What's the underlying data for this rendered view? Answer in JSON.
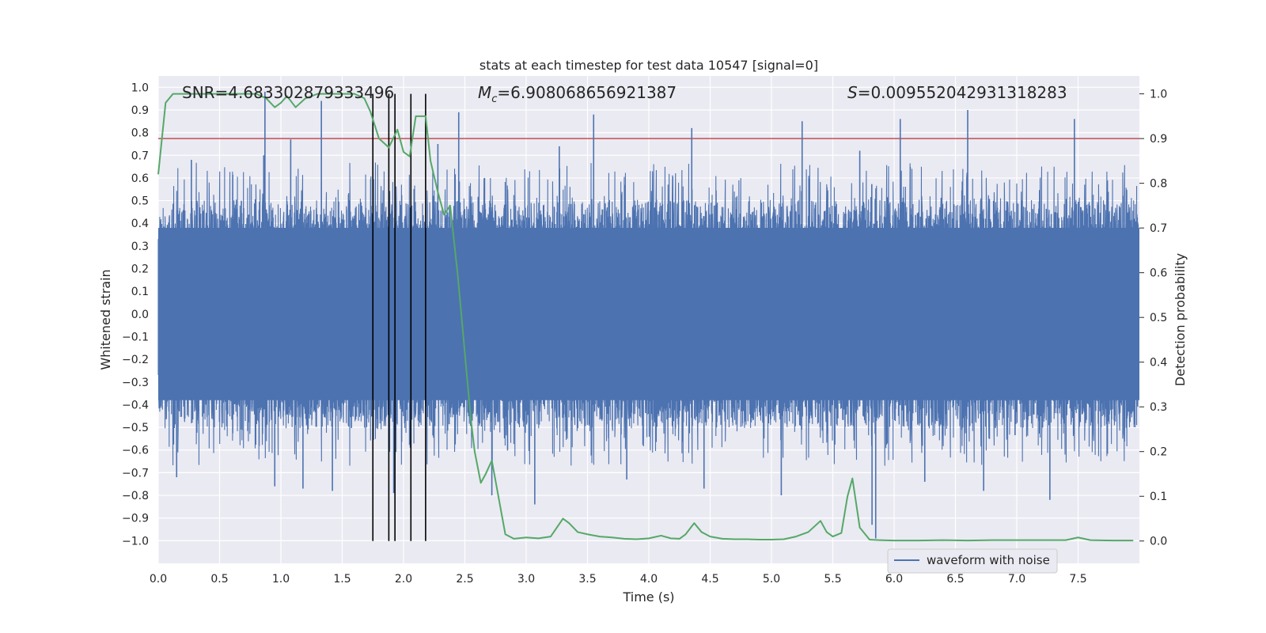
{
  "chart_data": {
    "type": "line",
    "title": "stats at each timestep for test data 10547 [signal=0]",
    "xlabel": "Time (s)",
    "ylabel": "Whitened strain",
    "y2label": "Detection probability",
    "xlim": [
      0.0,
      8.0
    ],
    "ylim": [
      -1.1,
      1.05
    ],
    "y2lim": [
      -0.05,
      1.04
    ],
    "xticks": [
      0.0,
      0.5,
      1.0,
      1.5,
      2.0,
      2.5,
      3.0,
      3.5,
      4.0,
      4.5,
      5.0,
      5.5,
      6.0,
      6.5,
      7.0,
      7.5
    ],
    "xtick_labels": [
      "0.0",
      "0.5",
      "1.0",
      "1.5",
      "2.0",
      "2.5",
      "3.0",
      "3.5",
      "4.0",
      "4.5",
      "5.0",
      "5.5",
      "6.0",
      "6.5",
      "7.0",
      "7.5"
    ],
    "yticks": [
      -1.0,
      -0.9,
      -0.8,
      -0.7,
      -0.6,
      -0.5,
      -0.4,
      -0.3,
      -0.2,
      -0.1,
      0.0,
      0.1,
      0.2,
      0.3,
      0.4,
      0.5,
      0.6,
      0.7,
      0.8,
      0.9,
      1.0
    ],
    "ytick_labels": [
      "−1.0",
      "−0.9",
      "−0.8",
      "−0.7",
      "−0.6",
      "−0.5",
      "−0.4",
      "−0.3",
      "−0.2",
      "−0.1",
      "0.0",
      "0.1",
      "0.2",
      "0.3",
      "0.4",
      "0.5",
      "0.6",
      "0.7",
      "0.8",
      "0.9",
      "1.0"
    ],
    "y2ticks": [
      0.0,
      0.1,
      0.2,
      0.3,
      0.4,
      0.5,
      0.6,
      0.7,
      0.8,
      0.9,
      1.0
    ],
    "y2tick_labels": [
      "0.0",
      "0.1",
      "0.2",
      "0.3",
      "0.4",
      "0.5",
      "0.6",
      "0.7",
      "0.8",
      "0.9",
      "1.0"
    ],
    "annotations": {
      "snr": "SNR=4.683302879333496",
      "mc_symbol": "M",
      "mc_sub": "c",
      "mc_value": "=6.908068656921387",
      "s_symbol": "S",
      "s_value": "=0.009552042931318283"
    },
    "legend": {
      "label": "waveform with noise",
      "placement": "lower-right"
    },
    "threshold": {
      "value": 0.9,
      "axis": "y2",
      "color": "#c44e52"
    },
    "vlines": [
      1.75,
      1.88,
      1.93,
      2.06,
      2.18
    ],
    "waveform": {
      "name": "waveform with noise",
      "color": "#4c72b0",
      "envelope": 0.42,
      "spikes": [
        {
          "x": 0.87,
          "y": 0.98
        },
        {
          "x": 0.86,
          "y": 0.7
        },
        {
          "x": 1.33,
          "y": 0.94
        },
        {
          "x": 1.08,
          "y": 0.77
        },
        {
          "x": 0.27,
          "y": 0.68
        },
        {
          "x": 2.45,
          "y": 0.89
        },
        {
          "x": 3.55,
          "y": 0.88
        },
        {
          "x": 4.35,
          "y": 0.82
        },
        {
          "x": 5.25,
          "y": 0.85
        },
        {
          "x": 6.05,
          "y": 0.86
        },
        {
          "x": 6.6,
          "y": 0.9
        },
        {
          "x": 7.47,
          "y": 0.86
        },
        {
          "x": 2.28,
          "y": 0.75
        },
        {
          "x": 3.27,
          "y": 0.74
        },
        {
          "x": 5.72,
          "y": 0.72
        },
        {
          "x": 0.15,
          "y": -0.72
        },
        {
          "x": 1.42,
          "y": -0.78
        },
        {
          "x": 1.18,
          "y": -0.77
        },
        {
          "x": 3.07,
          "y": -0.84
        },
        {
          "x": 5.85,
          "y": -0.99
        },
        {
          "x": 5.82,
          "y": -0.93
        },
        {
          "x": 7.27,
          "y": -0.82
        },
        {
          "x": 6.73,
          "y": -0.78
        },
        {
          "x": 5.08,
          "y": -0.8
        },
        {
          "x": 4.45,
          "y": -0.77
        },
        {
          "x": 2.72,
          "y": -0.8
        },
        {
          "x": 1.92,
          "y": -0.79
        },
        {
          "x": 0.95,
          "y": -0.76
        },
        {
          "x": 6.25,
          "y": -0.74
        },
        {
          "x": 3.82,
          "y": -0.73
        }
      ]
    },
    "series": [
      {
        "name": "detection probability",
        "axis": "y2",
        "color": "#55a868",
        "x": [
          0.0,
          0.06,
          0.12,
          0.2,
          0.35,
          0.5,
          0.65,
          0.8,
          0.88,
          0.95,
          1.0,
          1.05,
          1.12,
          1.2,
          1.3,
          1.4,
          1.5,
          1.6,
          1.68,
          1.73,
          1.8,
          1.88,
          1.95,
          2.0,
          2.05,
          2.1,
          2.18,
          2.22,
          2.28,
          2.33,
          2.38,
          2.44,
          2.5,
          2.55,
          2.58,
          2.63,
          2.67,
          2.72,
          2.78,
          2.83,
          2.9,
          3.0,
          3.1,
          3.2,
          3.3,
          3.35,
          3.42,
          3.5,
          3.6,
          3.7,
          3.8,
          3.9,
          4.0,
          4.1,
          4.18,
          4.25,
          4.3,
          4.37,
          4.43,
          4.5,
          4.6,
          4.7,
          4.8,
          4.9,
          5.0,
          5.1,
          5.2,
          5.3,
          5.4,
          5.45,
          5.5,
          5.57,
          5.62,
          5.66,
          5.72,
          5.8,
          5.88,
          6.0,
          6.2,
          6.4,
          6.6,
          6.8,
          7.0,
          7.2,
          7.4,
          7.5,
          7.6,
          7.8,
          7.95
        ],
        "y": [
          0.82,
          0.98,
          1.0,
          1.0,
          1.0,
          1.0,
          1.0,
          1.0,
          0.99,
          0.97,
          0.98,
          0.995,
          0.97,
          0.99,
          1.0,
          1.0,
          1.0,
          1.0,
          0.99,
          0.96,
          0.9,
          0.88,
          0.92,
          0.87,
          0.86,
          0.95,
          0.95,
          0.85,
          0.78,
          0.73,
          0.75,
          0.6,
          0.42,
          0.27,
          0.2,
          0.13,
          0.15,
          0.18,
          0.09,
          0.015,
          0.005,
          0.008,
          0.006,
          0.01,
          0.05,
          0.04,
          0.02,
          0.015,
          0.01,
          0.008,
          0.005,
          0.004,
          0.006,
          0.012,
          0.006,
          0.005,
          0.015,
          0.04,
          0.02,
          0.01,
          0.005,
          0.004,
          0.004,
          0.003,
          0.003,
          0.004,
          0.01,
          0.02,
          0.045,
          0.02,
          0.01,
          0.018,
          0.1,
          0.14,
          0.03,
          0.003,
          0.002,
          0.001,
          0.001,
          0.002,
          0.001,
          0.002,
          0.002,
          0.002,
          0.002,
          0.008,
          0.002,
          0.001,
          0.001
        ]
      }
    ]
  }
}
